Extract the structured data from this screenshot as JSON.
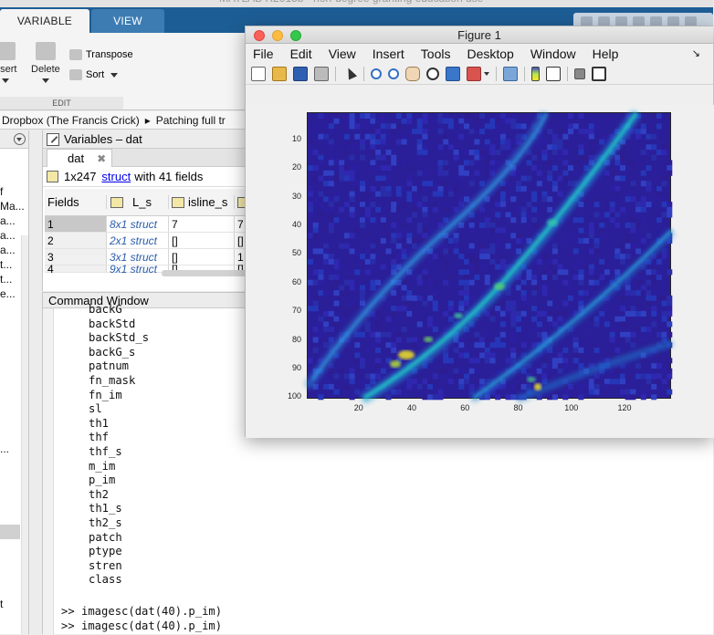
{
  "ribbon": {
    "tabs": [
      "VARIABLE",
      "VIEW"
    ],
    "insert_label": "nsert",
    "delete_label": "Delete",
    "transpose_label": "Transpose",
    "sort_label": "Sort",
    "group_label": "EDIT"
  },
  "pathbar": {
    "part1": "Dropbox (The Francis Crick)",
    "separator": "▸",
    "part2": "Patching full tr"
  },
  "left_panel": {
    "items": [
      "f",
      "Ma...",
      "a...",
      "a...",
      "a...",
      "t...",
      "t...",
      "e...",
      "...",
      "t"
    ]
  },
  "variables": {
    "title": "Variables – dat",
    "tab": "dat",
    "info_prefix": "1x247",
    "info_link": "struct",
    "info_suffix": "with 41 fields",
    "columns": [
      "Fields",
      "L_s",
      "isline_s",
      "l"
    ],
    "rows": [
      {
        "idx": "1",
        "c1": "8x1 struct",
        "c2": "7",
        "c3": "7"
      },
      {
        "idx": "2",
        "c1": "2x1 struct",
        "c2": "[]",
        "c3": "[]"
      },
      {
        "idx": "3",
        "c1": "3x1 struct",
        "c2": "[]",
        "c3": "1"
      },
      {
        "idx": "4",
        "c1": "9x1 struct",
        "c2": "[]",
        "c3": "[]"
      }
    ]
  },
  "command_window": {
    "title": "Command Window",
    "fields": [
      "backG",
      "backStd",
      "backStd_s",
      "backG_s",
      "patnum",
      "fn_mask",
      "fn_im",
      "sl",
      "th1",
      "thf",
      "thf_s",
      "m_im",
      "p_im",
      "th2",
      "th1_s",
      "th2_s",
      "patch",
      "ptype",
      "stren",
      "class"
    ],
    "commands": [
      ">> imagesc(dat(40).p_im)",
      ">> imagesc(dat(40).p_im)"
    ]
  },
  "figure": {
    "title": "Figure 1",
    "menus": [
      "File",
      "Edit",
      "View",
      "Insert",
      "Tools",
      "Desktop",
      "Window",
      "Help"
    ],
    "menu_arrow": "↘",
    "colormap": "parula",
    "yticks": [
      "10",
      "20",
      "30",
      "40",
      "50",
      "60",
      "70",
      "80",
      "90",
      "100"
    ],
    "xticks": [
      "20",
      "40",
      "60",
      "80",
      "100",
      "120"
    ]
  },
  "colors": {
    "ribbon_blue": "#1d5d95",
    "image_background": "#2a1f99",
    "command_link": "#0000ee"
  }
}
